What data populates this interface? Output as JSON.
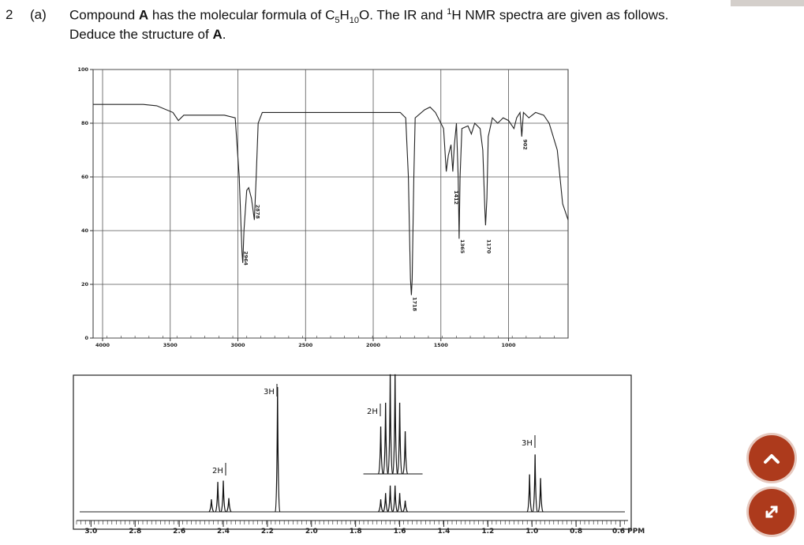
{
  "question": {
    "number": "2",
    "part": "(a)",
    "line1": [
      "Compound ",
      "A",
      " has the molecular formula of C",
      "5",
      "H",
      "10",
      "O. The IR and ",
      "1",
      "H NMR spectra are given as follows."
    ],
    "line2": [
      "Deduce the structure of ",
      "A",
      "."
    ]
  },
  "ir": {
    "xlim": [
      4070,
      560
    ],
    "ylim": [
      0,
      100
    ],
    "xticks": [
      4000,
      3500,
      3000,
      2500,
      2000,
      1500,
      1000
    ],
    "yticks": [
      0,
      20,
      40,
      60,
      80,
      100
    ],
    "trace": {
      "x": [
        4070,
        3700,
        3600,
        3480,
        3440,
        3400,
        3100,
        3020,
        2990,
        2970,
        2964,
        2955,
        2935,
        2920,
        2900,
        2878,
        2865,
        2850,
        2820,
        1800,
        1760,
        1740,
        1725,
        1718,
        1712,
        1700,
        1690,
        1620,
        1580,
        1540,
        1480,
        1460,
        1445,
        1425,
        1412,
        1400,
        1385,
        1372,
        1365,
        1358,
        1345,
        1300,
        1275,
        1250,
        1210,
        1190,
        1175,
        1170,
        1160,
        1150,
        1120,
        1080,
        1040,
        1000,
        960,
        940,
        915,
        902,
        890,
        850,
        800,
        740,
        700,
        640,
        600,
        560
      ],
      "y": [
        87,
        87,
        86.5,
        84,
        81,
        83,
        83,
        82,
        60,
        32,
        28,
        40,
        55,
        56,
        52,
        44,
        60,
        80,
        84,
        84,
        82,
        60,
        22,
        16,
        22,
        60,
        82,
        85,
        86,
        84,
        78,
        62,
        68,
        72,
        62,
        72,
        80,
        60,
        37,
        60,
        78,
        79,
        76,
        80,
        78,
        70,
        48,
        42,
        52,
        75,
        82,
        80,
        82,
        81,
        78,
        82,
        84,
        75,
        84,
        82,
        84,
        83,
        80,
        70,
        50,
        44
      ]
    },
    "peak_labels": [
      2964,
      2878,
      1718,
      1412,
      1365,
      1170,
      902
    ]
  },
  "nmr": {
    "xlim": [
      3.08,
      0.55
    ],
    "xticks": [
      {
        "value": 3,
        "label": "3.0"
      },
      2.8,
      2.6,
      2.4,
      2.2,
      {
        "value": 2,
        "label": "2.0"
      },
      1.8,
      1.6,
      1.4,
      1.2,
      {
        "value": 1,
        "label": "1.0"
      },
      0.8,
      {
        "value": 0.6,
        "label": "0.6 PPM"
      }
    ],
    "signals": [
      {
        "label": "2H",
        "ppm": [
          2.454,
          2.425,
          2.4,
          2.375
        ],
        "heights": [
          10,
          24,
          25,
          11
        ]
      },
      {
        "label": "3H",
        "ppm": [
          2.154
        ],
        "heights": [
          100
        ]
      },
      {
        "label": "2H",
        "ppm": [
          1.686,
          1.664,
          1.643,
          1.621,
          1.6,
          1.575
        ],
        "heights": [
          10,
          15,
          21,
          21,
          15,
          9
        ]
      },
      {
        "label": "3H",
        "ppm": [
          1.011,
          0.986,
          0.961
        ],
        "heights": [
          30,
          46,
          27
        ]
      }
    ]
  }
}
